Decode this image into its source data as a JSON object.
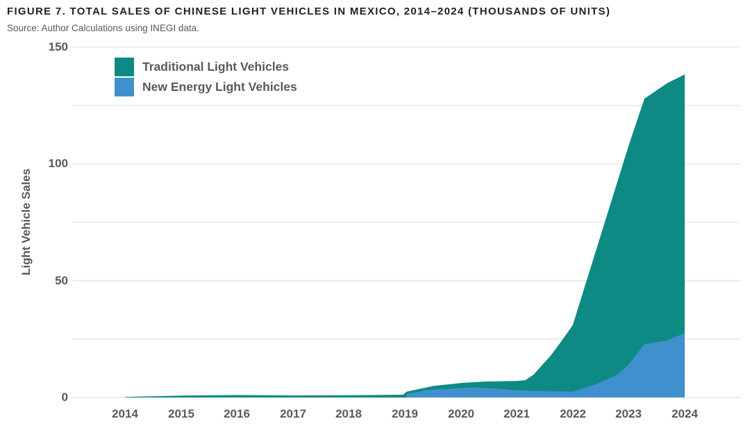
{
  "header": {
    "title": "FIGURE 7. TOTAL SALES OF CHINESE LIGHT VEHICLES IN MEXICO, 2014–2024 (THOUSANDS OF UNITS)",
    "source": "Source: Author Calculations using INEGI data."
  },
  "chart_data": {
    "type": "area",
    "stacked": true,
    "title": "Total Sales of Chinese Light Vehicles in Mexico, 2014–2024 (thousands of units)",
    "xlabel": "",
    "ylabel": "Light Vehicle Sales",
    "ylim": [
      0,
      150
    ],
    "y_ticks_labeled": [
      0,
      50,
      100,
      150
    ],
    "y_gridline_step": 25,
    "x_ticks": [
      2014,
      2015,
      2016,
      2017,
      2018,
      2019,
      2020,
      2021,
      2022,
      2023,
      2024
    ],
    "grid": true,
    "legend_position": "top-left",
    "colors": {
      "traditional": "#0E8A84",
      "new_energy": "#4090CE",
      "gridline": "#EBEBEB",
      "text": "#58595b",
      "title_text": "#231f20"
    },
    "annual_estimates": {
      "years": [
        2014,
        2015,
        2016,
        2017,
        2018,
        2019,
        2020,
        2021,
        2022,
        2023,
        2024
      ],
      "traditional": [
        0.2,
        0.8,
        1.0,
        0.85,
        0.95,
        1.1,
        2.0,
        4.1,
        28.5,
        93.8,
        110.7
      ],
      "new_energy": [
        0,
        0,
        0,
        0,
        0,
        1.4,
        4.2,
        3.0,
        2.5,
        14.2,
        27.6
      ],
      "total": [
        0.2,
        0.8,
        1.0,
        0.85,
        0.95,
        2.5,
        6.2,
        7.1,
        31,
        108,
        138.3
      ]
    },
    "series": [
      {
        "name": "Traditional Light Vehicles",
        "color": "#0E8A84",
        "role": "stack-top-boundary-is-total",
        "top_curve": [
          [
            2014,
            0.2
          ],
          [
            2014.5,
            0.5
          ],
          [
            2015,
            0.8
          ],
          [
            2016,
            1.05
          ],
          [
            2017,
            0.85
          ],
          [
            2018,
            0.95
          ],
          [
            2018.97,
            1.2
          ],
          [
            2019.03,
            2.5
          ],
          [
            2019.5,
            4.9
          ],
          [
            2020,
            6.2
          ],
          [
            2020.4,
            6.8
          ],
          [
            2021,
            7.1
          ],
          [
            2021.15,
            7.4
          ],
          [
            2021.3,
            9.8
          ],
          [
            2021.45,
            13.8
          ],
          [
            2021.6,
            17.8
          ],
          [
            2021.8,
            24.2
          ],
          [
            2022,
            31
          ],
          [
            2023,
            108
          ],
          [
            2023.28,
            128
          ],
          [
            2023.7,
            134.8
          ],
          [
            2024,
            138.3
          ]
        ]
      },
      {
        "name": "New Energy Light Vehicles",
        "color": "#4090CE",
        "role": "stack-bottom-boundary-is-nev",
        "top_curve": [
          [
            2019.03,
            1.4
          ],
          [
            2019.4,
            3.2
          ],
          [
            2020.2,
            4.35
          ],
          [
            2020.6,
            3.9
          ],
          [
            2021,
            3.0
          ],
          [
            2021.5,
            2.7
          ],
          [
            2022,
            2.5
          ],
          [
            2022.4,
            5.5
          ],
          [
            2022.8,
            9.8
          ],
          [
            2023,
            14.2
          ],
          [
            2023.28,
            22.8
          ],
          [
            2023.7,
            24.5
          ],
          [
            2024,
            27.6
          ]
        ]
      }
    ]
  }
}
